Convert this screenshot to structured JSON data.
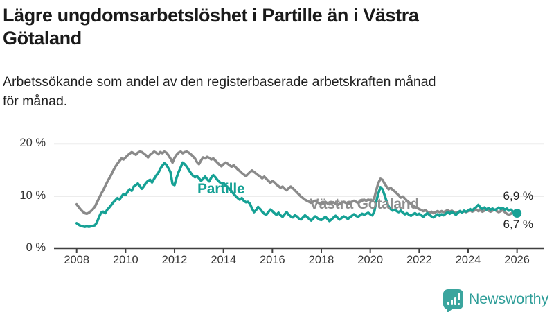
{
  "header": {
    "title": "Lägre ungdomsarbetslöshet i Partille än i Västra Götaland",
    "title_lines": [
      "Lägre ungdomsarbetslöshet i Partille än i Västra",
      "Götaland"
    ],
    "subtitle": "Arbetssökande som andel av den registerbaserade arbetskraften månad för månad.",
    "subtitle_lines": [
      "Arbetssökande som andel av den registerbaserade arbetskraften månad",
      "för månad."
    ]
  },
  "footer": {
    "brand": "Newsworthy"
  },
  "theme": {
    "accent_teal": "#16A195",
    "line_gray": "#8A8A8A",
    "grid_color": "#DADADA",
    "axis_color": "#404040",
    "brand_teal": "#3BA59E",
    "text_color": "#1A1A1A"
  },
  "chart_data": {
    "type": "line",
    "unit": "%",
    "x_start_year": 2008,
    "points_per_year": 12,
    "ylim": [
      0,
      21.5
    ],
    "grid": true,
    "y_ticks": [
      {
        "value": 0,
        "label": "0 %"
      },
      {
        "value": 10,
        "label": "10 %"
      },
      {
        "value": 20,
        "label": "20 %"
      }
    ],
    "x_ticks": [
      {
        "year": 2008,
        "label": "2008"
      },
      {
        "year": 2010,
        "label": "2010"
      },
      {
        "year": 2012,
        "label": "2012"
      },
      {
        "year": 2014,
        "label": "2014"
      },
      {
        "year": 2016,
        "label": "2016"
      },
      {
        "year": 2018,
        "label": "2018"
      },
      {
        "year": 2020,
        "label": "2020"
      },
      {
        "year": 2022,
        "label": "2022"
      },
      {
        "year": 2024,
        "label": "2024"
      },
      {
        "year": 2026,
        "label": "2026"
      }
    ],
    "series": [
      {
        "name": "Västra Götaland",
        "color": "#8A8A8A",
        "end_dot": false,
        "last_value_label": "6,9 %",
        "values": [
          8.4,
          7.9,
          7.4,
          7.0,
          6.7,
          6.6,
          6.8,
          7.1,
          7.5,
          8.0,
          8.8,
          9.6,
          10.4,
          11.1,
          11.9,
          12.7,
          13.4,
          14.1,
          14.9,
          15.6,
          16.2,
          16.7,
          17.2,
          17.0,
          17.4,
          17.8,
          18.1,
          18.4,
          18.2,
          17.9,
          18.3,
          18.5,
          18.4,
          18.1,
          17.8,
          17.4,
          17.9,
          18.2,
          18.5,
          18.3,
          18.0,
          18.4,
          18.2,
          18.5,
          18.3,
          17.8,
          17.2,
          16.4,
          17.3,
          17.9,
          18.3,
          18.5,
          18.2,
          18.4,
          18.5,
          18.3,
          18.0,
          17.6,
          17.2,
          16.5,
          16.1,
          16.8,
          17.4,
          17.2,
          17.5,
          17.3,
          17.0,
          17.2,
          16.8,
          16.4,
          16.0,
          15.7,
          16.1,
          16.4,
          16.2,
          15.9,
          15.6,
          15.9,
          15.5,
          15.1,
          14.8,
          14.4,
          14.1,
          13.8,
          14.2,
          14.6,
          14.9,
          14.6,
          14.3,
          14.0,
          13.7,
          13.4,
          13.7,
          13.3,
          12.9,
          12.5,
          12.9,
          12.6,
          12.2,
          11.9,
          11.6,
          11.8,
          11.4,
          11.1,
          11.5,
          11.8,
          11.5,
          11.1,
          10.7,
          10.3,
          9.9,
          9.6,
          9.3,
          9.1,
          8.9,
          8.7,
          8.9,
          9.1,
          8.8,
          8.6,
          8.5,
          8.7,
          8.9,
          8.6,
          8.4,
          8.6,
          8.8,
          8.5,
          8.3,
          8.5,
          8.7,
          8.9,
          8.7,
          8.5,
          8.7,
          8.9,
          9.1,
          8.9,
          8.7,
          8.9,
          9.1,
          9.3,
          9.1,
          9.3,
          9.2,
          9.0,
          9.6,
          11.2,
          12.5,
          13.3,
          13.1,
          12.4,
          11.8,
          11.3,
          11.6,
          11.2,
          10.9,
          10.5,
          10.1,
          9.7,
          9.9,
          9.5,
          9.1,
          8.8,
          8.5,
          8.2,
          7.9,
          7.7,
          7.5,
          7.3,
          7.1,
          7.3,
          7.0,
          6.8,
          7.0,
          6.7,
          6.9,
          7.1,
          6.9,
          7.1,
          6.9,
          7.1,
          7.3,
          7.0,
          7.2,
          6.9,
          6.7,
          6.9,
          7.1,
          6.9,
          7.1,
          6.9,
          7.1,
          7.3,
          7.0,
          7.2,
          7.4,
          7.1,
          7.3,
          7.0,
          7.2,
          7.4,
          7.2,
          7.0,
          7.2,
          7.4,
          7.1,
          6.9,
          7.1,
          7.3,
          6.9,
          6.6,
          6.4,
          6.6,
          6.9,
          7.1,
          6.9
        ]
      },
      {
        "name": "Partille",
        "color": "#16A195",
        "end_dot": true,
        "last_value_label": "6,7 %",
        "values": [
          4.8,
          4.5,
          4.3,
          4.2,
          4.1,
          4.2,
          4.1,
          4.2,
          4.3,
          4.4,
          5.0,
          6.0,
          6.8,
          7.0,
          6.7,
          7.4,
          7.8,
          8.3,
          8.8,
          9.2,
          9.6,
          9.3,
          9.9,
          10.4,
          10.2,
          10.8,
          11.3,
          11.0,
          11.8,
          12.1,
          12.4,
          11.9,
          11.4,
          11.9,
          12.5,
          12.9,
          13.1,
          12.6,
          13.3,
          13.9,
          14.4,
          15.2,
          15.8,
          16.3,
          16.0,
          15.3,
          14.6,
          12.3,
          12.1,
          13.5,
          14.6,
          15.5,
          16.4,
          16.1,
          15.6,
          15.0,
          14.4,
          13.9,
          13.6,
          13.8,
          13.4,
          12.9,
          13.3,
          13.7,
          13.2,
          12.8,
          13.5,
          14.0,
          13.6,
          13.1,
          12.7,
          12.4,
          12.5,
          12.1,
          11.7,
          11.3,
          10.9,
          10.4,
          10.0,
          9.6,
          9.3,
          9.6,
          9.1,
          8.8,
          8.9,
          8.5,
          7.6,
          6.9,
          7.3,
          7.9,
          7.5,
          7.0,
          6.6,
          6.4,
          6.9,
          7.4,
          7.1,
          6.7,
          6.4,
          6.8,
          6.3,
          6.0,
          6.5,
          6.9,
          6.4,
          6.1,
          5.9,
          6.3,
          6.1,
          5.7,
          5.5,
          5.9,
          6.3,
          6.0,
          5.6,
          5.3,
          5.7,
          6.1,
          5.8,
          5.5,
          5.4,
          5.7,
          6.0,
          5.6,
          5.2,
          5.5,
          5.9,
          6.2,
          5.8,
          5.5,
          5.8,
          6.1,
          5.9,
          5.6,
          5.9,
          6.2,
          6.5,
          6.2,
          6.0,
          6.3,
          6.6,
          6.4,
          6.6,
          6.8,
          6.5,
          6.3,
          7.0,
          9.0,
          10.5,
          11.7,
          11.3,
          10.2,
          9.0,
          8.0,
          7.5,
          7.2,
          7.4,
          7.1,
          6.9,
          7.2,
          6.8,
          6.5,
          6.7,
          6.4,
          6.2,
          6.5,
          6.7,
          6.4,
          6.6,
          6.3,
          6.0,
          6.4,
          6.7,
          6.4,
          6.1,
          5.9,
          6.2,
          6.5,
          6.2,
          6.5,
          6.3,
          6.6,
          6.9,
          6.6,
          7.0,
          6.7,
          6.4,
          6.8,
          7.1,
          6.8,
          7.2,
          7.0,
          7.2,
          7.5,
          7.2,
          7.6,
          7.9,
          8.3,
          7.8,
          7.5,
          7.8,
          7.4,
          7.7,
          7.4,
          7.6,
          7.3,
          7.5,
          7.8,
          7.5,
          7.7,
          7.4,
          7.6,
          7.2,
          7.4,
          7.0,
          6.8,
          6.7
        ]
      }
    ],
    "end_labels": [
      {
        "text": "6,9 %",
        "series": "Västra Götaland"
      },
      {
        "text": "6,7 %",
        "series": "Partille"
      }
    ]
  }
}
